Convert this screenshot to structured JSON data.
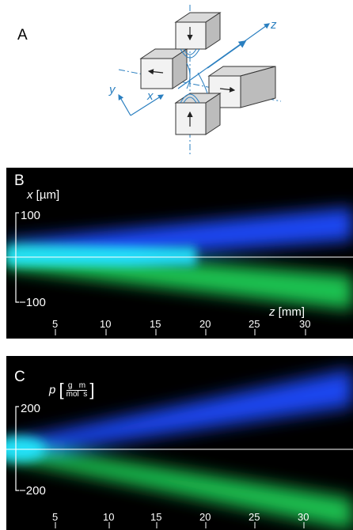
{
  "panels": {
    "a": {
      "letter": "A",
      "axes": {
        "x": "x",
        "y": "y",
        "z": "z"
      }
    },
    "b": {
      "letter": "B",
      "ylabel_var": "x",
      "ylabel_unit": "[µm]",
      "ytick_top": "100",
      "ytick_bottom": "−100",
      "xlabel_var": "z",
      "xlabel_unit": "[mm]",
      "xticks": [
        "5",
        "10",
        "15",
        "20",
        "25",
        "30"
      ]
    },
    "c": {
      "letter": "C",
      "ylabel_var": "p",
      "unit_num": "g   m",
      "unit_den": "mol  s",
      "ytick_top": "200",
      "ytick_bottom": "−200",
      "xticks": [
        "5",
        "10",
        "15",
        "20",
        "25",
        "30"
      ]
    }
  },
  "colors": {
    "blue_beam": "#2255ff",
    "cyan_core": "#22e6ff",
    "green_beam": "#22cc55",
    "diagram_blue": "#2a7fc0"
  }
}
